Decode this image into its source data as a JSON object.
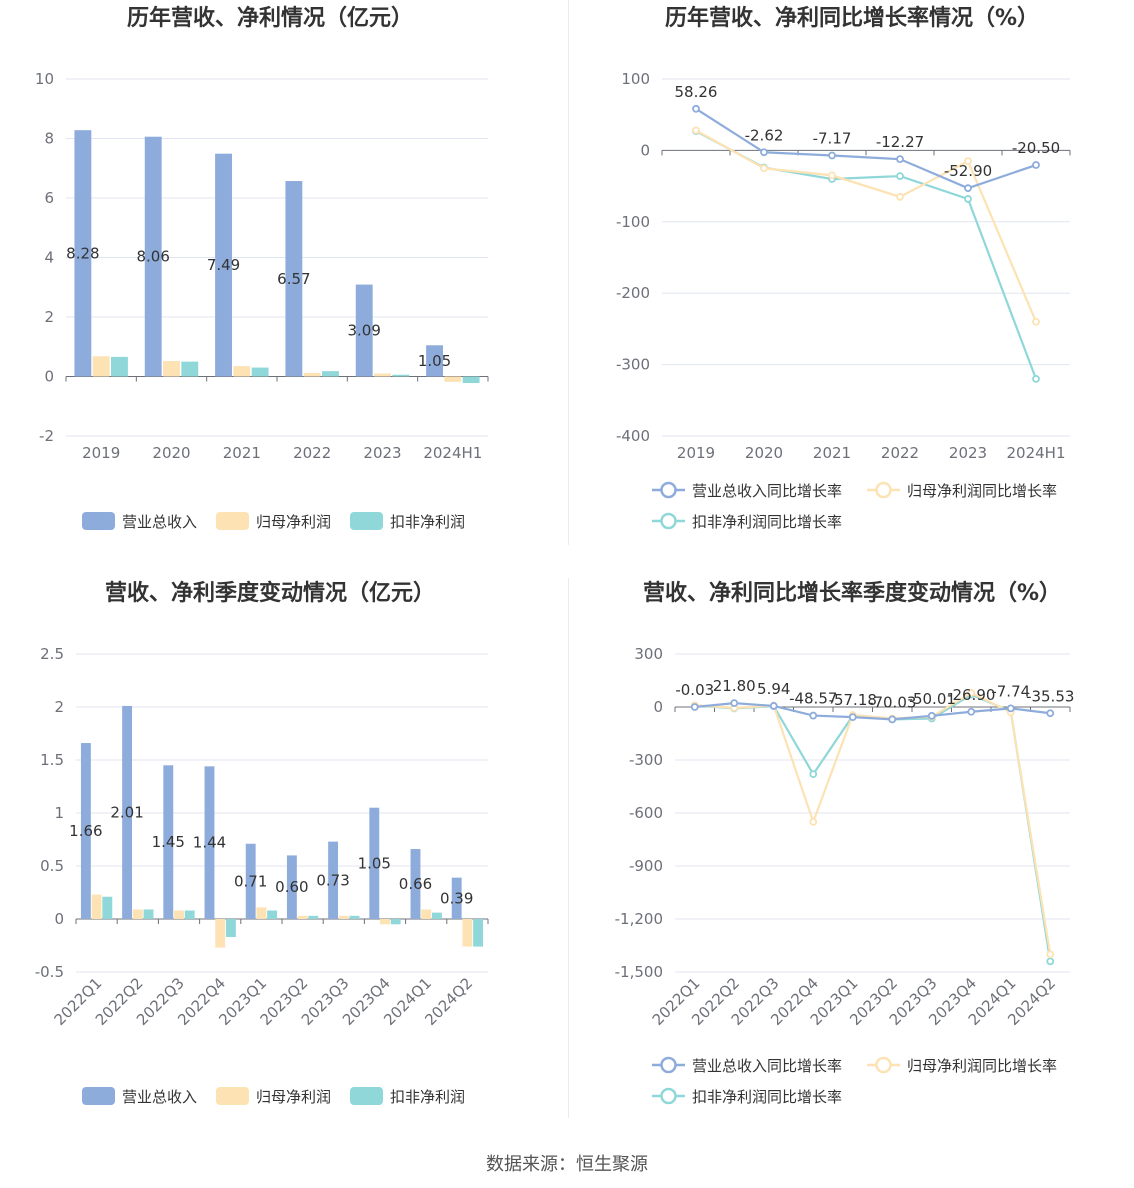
{
  "source": "数据来源：恒生聚源",
  "colors": {
    "revenue": "#8eacdb",
    "net": "#fde2b3",
    "deducted": "#8fd7d8"
  },
  "legend_bar": [
    "营业总收入",
    "归母净利润",
    "扣非净利润"
  ],
  "legend_line": [
    "营业总收入同比增长率",
    "归母净利润同比增长率",
    "扣非净利润同比增长率"
  ],
  "chart_data": [
    {
      "id": "annual-bar",
      "type": "bar",
      "title": "历年营收、净利情况（亿元）",
      "categories": [
        "2019",
        "2020",
        "2021",
        "2022",
        "2023",
        "2024H1"
      ],
      "ylim": [
        -2,
        10
      ],
      "yticks": [
        -2,
        0,
        2,
        4,
        6,
        8,
        10
      ],
      "ytick_labels": [
        "-2",
        "0",
        "2",
        "4",
        "6",
        "8",
        "10"
      ],
      "series": [
        {
          "name": "营业总收入",
          "values": [
            8.28,
            8.06,
            7.49,
            6.57,
            3.09,
            1.05
          ],
          "labels": [
            "8.28",
            "8.06",
            "7.49",
            "6.57",
            "3.09",
            "1.05"
          ]
        },
        {
          "name": "归母净利润",
          "values": [
            0.68,
            0.52,
            0.35,
            0.12,
            0.1,
            -0.18
          ]
        },
        {
          "name": "扣非净利润",
          "values": [
            0.66,
            0.5,
            0.3,
            0.18,
            0.06,
            -0.22
          ]
        }
      ],
      "grid": true,
      "legend": "bottom"
    },
    {
      "id": "annual-line",
      "type": "line",
      "title": "历年营收、净利同比增长率情况（%）",
      "categories": [
        "2019",
        "2020",
        "2021",
        "2022",
        "2023",
        "2024H1"
      ],
      "ylim": [
        -400,
        100
      ],
      "yticks": [
        -400,
        -300,
        -200,
        -100,
        0,
        100
      ],
      "ytick_labels": [
        "-400",
        "-300",
        "-200",
        "-100",
        "0",
        "100"
      ],
      "series": [
        {
          "name": "营业总收入同比增长率",
          "values": [
            58.26,
            -2.62,
            -7.17,
            -12.27,
            -52.9,
            -20.5
          ],
          "labels": [
            "58.26",
            "-2.62",
            "-7.17",
            "-12.27",
            "-52.90",
            "-20.50"
          ]
        },
        {
          "name": "归母净利润同比增长率",
          "values": [
            28,
            -25,
            -35,
            -65,
            -15,
            -240
          ]
        },
        {
          "name": "扣非净利润同比增长率",
          "values": [
            27,
            -24,
            -40,
            -36,
            -68,
            -320
          ]
        }
      ],
      "grid": true,
      "legend": "bottom"
    },
    {
      "id": "quarter-bar",
      "type": "bar",
      "title": "营收、净利季度变动情况（亿元）",
      "categories": [
        "2022Q1",
        "2022Q2",
        "2022Q3",
        "2022Q4",
        "2023Q1",
        "2023Q2",
        "2023Q3",
        "2023Q4",
        "2024Q1",
        "2024Q2"
      ],
      "ylim": [
        -0.5,
        2.5
      ],
      "yticks": [
        -0.5,
        0,
        0.5,
        1,
        1.5,
        2,
        2.5
      ],
      "ytick_labels": [
        "-0.5",
        "0",
        "0.5",
        "1",
        "1.5",
        "2",
        "2.5"
      ],
      "series": [
        {
          "name": "营业总收入",
          "values": [
            1.66,
            2.01,
            1.45,
            1.44,
            0.71,
            0.6,
            0.73,
            1.05,
            0.66,
            0.39
          ],
          "labels": [
            "1.66",
            "2.01",
            "1.45",
            "1.44",
            "0.71",
            "0.60",
            "0.73",
            "1.05",
            "0.66",
            "0.39"
          ]
        },
        {
          "name": "归母净利润",
          "values": [
            0.23,
            0.09,
            0.08,
            -0.27,
            0.11,
            0.03,
            0.03,
            -0.05,
            0.09,
            -0.26
          ]
        },
        {
          "name": "扣非净利润",
          "values": [
            0.21,
            0.09,
            0.08,
            -0.17,
            0.08,
            0.03,
            0.03,
            -0.05,
            0.06,
            -0.26
          ]
        }
      ],
      "grid": true,
      "legend": "bottom"
    },
    {
      "id": "quarter-line",
      "type": "line",
      "title": "营收、净利同比增长率季度变动情况（%）",
      "categories": [
        "2022Q1",
        "2022Q2",
        "2022Q3",
        "2022Q4",
        "2023Q1",
        "2023Q2",
        "2023Q3",
        "2023Q4",
        "2024Q1",
        "2024Q2"
      ],
      "ylim": [
        -1500,
        300
      ],
      "yticks": [
        -1500,
        -1200,
        -900,
        -600,
        -300,
        0,
        300
      ],
      "ytick_labels": [
        "-1,500",
        "-1,200",
        "-900",
        "-600",
        "-300",
        "0",
        "300"
      ],
      "series": [
        {
          "name": "营业总收入同比增长率",
          "values": [
            -0.03,
            21.8,
            5.94,
            -48.57,
            -57.18,
            -70.03,
            -50.01,
            -26.9,
            -7.74,
            -35.53
          ],
          "labels": [
            "-0.03",
            "21.80",
            "5.94",
            "-48.57",
            "-57.18",
            "-70.03",
            "-50.01",
            "-26.90",
            "-7.74",
            "-35.53"
          ]
        },
        {
          "name": "归母净利润同比增长率",
          "values": [
            10,
            -5,
            8,
            -650,
            -45,
            -65,
            -55,
            80,
            -30,
            -1400
          ]
        },
        {
          "name": "扣非净利润同比增长率",
          "values": [
            8,
            -8,
            5,
            -380,
            -50,
            -70,
            -65,
            70,
            -25,
            -1440
          ]
        }
      ],
      "grid": true,
      "legend": "bottom"
    }
  ]
}
